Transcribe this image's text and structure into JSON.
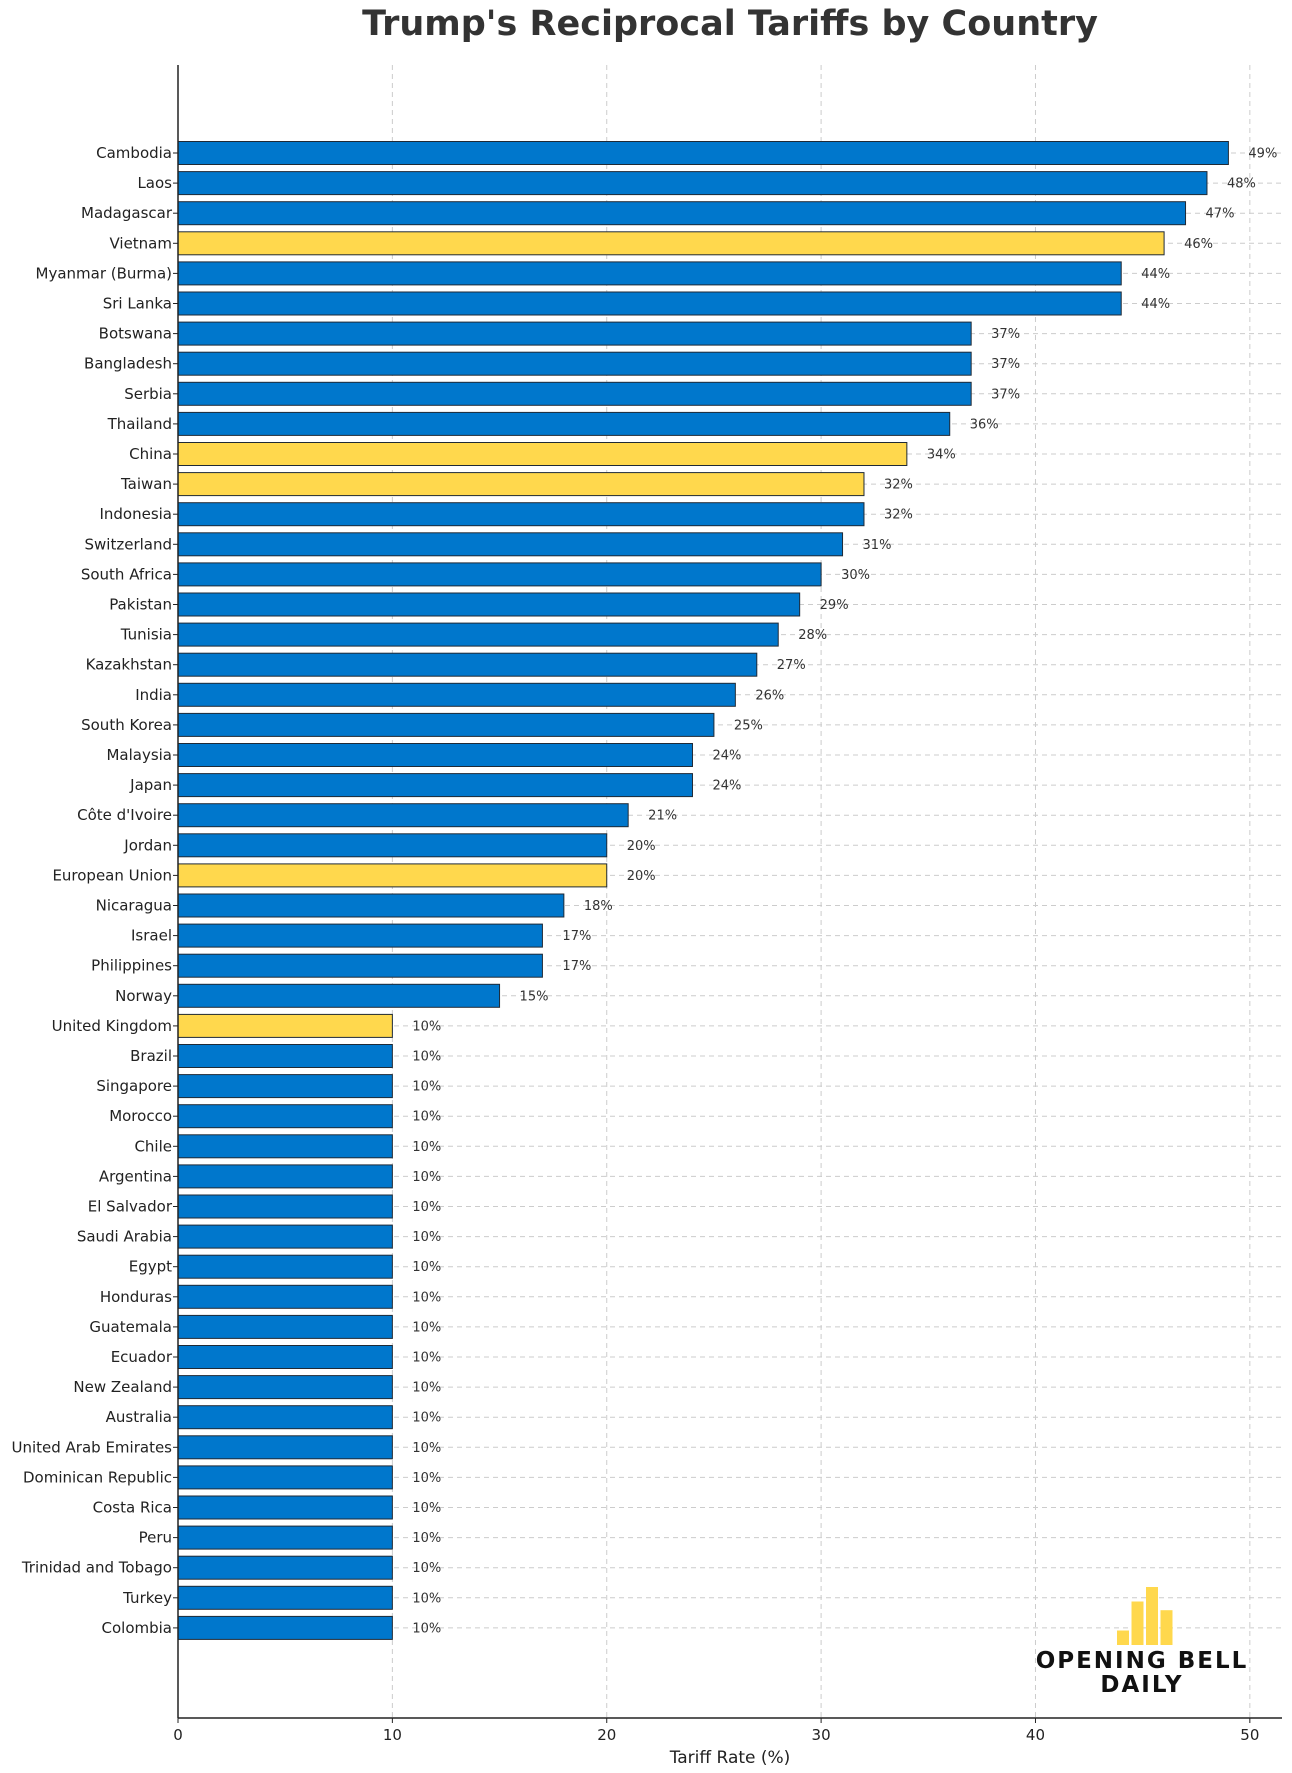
{
  "chart_data": {
    "type": "bar",
    "orientation": "horizontal",
    "title": "Trump's Reciprocal Tariffs by Country",
    "xlabel": "Tariff Rate (%)",
    "ylabel": "",
    "xlim": [
      0,
      51.5
    ],
    "xticks": [
      0,
      10,
      20,
      30,
      40,
      50
    ],
    "grid": true,
    "value_suffix": "%",
    "colors": {
      "default": "#0077cc",
      "highlight": "#ffd84d",
      "edge": "#1f2a36"
    },
    "categories": [
      "Cambodia",
      "Laos",
      "Madagascar",
      "Vietnam",
      "Myanmar (Burma)",
      "Sri Lanka",
      "Botswana",
      "Bangladesh",
      "Serbia",
      "Thailand",
      "China",
      "Taiwan",
      "Indonesia",
      "Switzerland",
      "South Africa",
      "Pakistan",
      "Tunisia",
      "Kazakhstan",
      "India",
      "South Korea",
      "Malaysia",
      "Japan",
      "Côte d'Ivoire",
      "Jordan",
      "European Union",
      "Nicaragua",
      "Israel",
      "Philippines",
      "Norway",
      "United Kingdom",
      "Brazil",
      "Singapore",
      "Morocco",
      "Chile",
      "Argentina",
      "El Salvador",
      "Saudi Arabia",
      "Egypt",
      "Honduras",
      "Guatemala",
      "Ecuador",
      "New Zealand",
      "Australia",
      "United Arab Emirates",
      "Dominican Republic",
      "Costa Rica",
      "Peru",
      "Trinidad and Tobago",
      "Turkey",
      "Colombia"
    ],
    "values": [
      49,
      48,
      47,
      46,
      44,
      44,
      37,
      37,
      37,
      36,
      34,
      32,
      32,
      31,
      30,
      29,
      28,
      27,
      26,
      25,
      24,
      24,
      21,
      20,
      20,
      18,
      17,
      17,
      15,
      10,
      10,
      10,
      10,
      10,
      10,
      10,
      10,
      10,
      10,
      10,
      10,
      10,
      10,
      10,
      10,
      10,
      10,
      10,
      10,
      10
    ],
    "highlighted": [
      "Vietnam",
      "China",
      "Taiwan",
      "European Union",
      "United Kingdom"
    ]
  },
  "logo": {
    "line1": "OPENING BELL",
    "line2": "DAILY",
    "bar_levels": [
      1,
      3,
      4,
      2.4
    ],
    "color": "#ffd84d"
  }
}
